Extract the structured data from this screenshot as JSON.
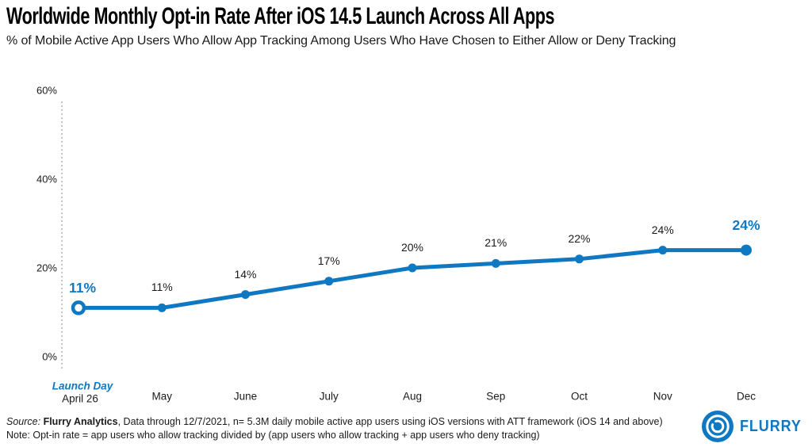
{
  "header": {
    "title": "Worldwide Monthly Opt-in Rate After iOS 14.5 Launch Across All Apps",
    "subtitle": "% of Mobile Active App Users Who Allow App Tracking Among Users Who Have Chosen to Either Allow or Deny Tracking"
  },
  "chart_data": {
    "type": "line",
    "title": "Worldwide Monthly Opt-in Rate After iOS 14.5 Launch Across All Apps",
    "subtitle": "% of Mobile Active App Users Who Allow App Tracking Among Users Who Have Chosen to Either Allow or Deny Tracking",
    "x_categories": [
      "April 26",
      "May",
      "June",
      "July",
      "Aug",
      "Sep",
      "Oct",
      "Nov",
      "Dec"
    ],
    "values": [
      11,
      11,
      14,
      17,
      20,
      21,
      22,
      24,
      24
    ],
    "point_labels": [
      "11%",
      "11%",
      "14%",
      "17%",
      "20%",
      "21%",
      "22%",
      "24%",
      "24%"
    ],
    "accent_point_indices": [
      0,
      8
    ],
    "first_point_style": "hollow",
    "y_ticks": [
      {
        "label": "60%",
        "value": 60
      },
      {
        "label": "40%",
        "value": 40
      },
      {
        "label": "20%",
        "value": 20
      },
      {
        "label": "0%",
        "value": 0
      }
    ],
    "ylim": [
      0,
      60
    ],
    "grid": false,
    "legend": "none",
    "launch_day_label": "Launch Day",
    "colors": {
      "line": "#0f78c3",
      "accent_text": "#0f78c3",
      "label_text": "#1a1a1a",
      "dotted_axis": "#c4c4c4"
    }
  },
  "footer": {
    "source_prefix": "Source:",
    "source_name": "Flurry Analytics",
    "source_rest": ", Data through 12/7/2021, n= 5.3M daily mobile active app users using iOS versions with ATT framework (iOS 14 and above)",
    "note": "Note: Opt-in rate = app users who allow tracking divided by (app users who allow tracking + app users who deny tracking)",
    "logo_text": "FLURRY"
  }
}
